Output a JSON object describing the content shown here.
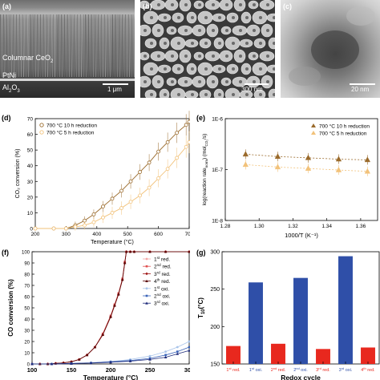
{
  "panels": {
    "a": {
      "label": "(a)",
      "layers": [
        "Columnar CeO",
        "PtNi",
        "Al"
      ],
      "ceo_sub": "2",
      "al_sub1": "2",
      "al_o": "O",
      "al_sub2": "3",
      "scale": "1 μm"
    },
    "b": {
      "label": "(b)",
      "scale": "300 nm"
    },
    "c": {
      "label": "(c)",
      "scale": "20 nm"
    }
  },
  "chart_data": [
    {
      "panel": "(d)",
      "type": "line",
      "xlabel": "Temperature (°C)",
      "ylabel": "CO₂ conversion (%)",
      "xlim": [
        200,
        700
      ],
      "ylim": [
        0,
        70
      ],
      "xticks": [
        200,
        300,
        400,
        500,
        600,
        700
      ],
      "yticks": [
        0,
        10,
        20,
        30,
        40,
        50,
        60,
        70
      ],
      "legend": "top-left",
      "series": [
        {
          "name": "700 °C 10 h reduction",
          "color": "#9a6a2b",
          "x": [
            200,
            260,
            300,
            330,
            360,
            390,
            420,
            450,
            480,
            510,
            540,
            570,
            600,
            630,
            660,
            690,
            700
          ],
          "values": [
            0,
            0,
            0,
            2,
            5,
            9,
            14,
            19,
            24,
            30,
            36,
            42,
            49,
            55,
            61,
            66,
            68
          ]
        },
        {
          "name": "700 °C 5 h reduction",
          "color": "#f2c27a",
          "x": [
            200,
            260,
            300,
            330,
            360,
            390,
            420,
            450,
            480,
            510,
            540,
            570,
            600,
            630,
            660,
            690,
            700
          ],
          "values": [
            0,
            0,
            0,
            1,
            2,
            4,
            7,
            10,
            13,
            17,
            21,
            26,
            32,
            38,
            45,
            52,
            55
          ]
        }
      ]
    },
    {
      "panel": "(e)",
      "type": "scatter",
      "xlabel": "1000/T (K⁻¹)",
      "ylabel": "log(reaction rate",
      "ylabel_sub": "norm",
      "ylabel_mid": ") (mol",
      "ylabel_co2": "CO₂",
      "ylabel_unit": "/s)",
      "xlim": [
        1.28,
        1.37
      ],
      "ylim_log": [
        1e-08,
        1e-06
      ],
      "xticks": [
        1.28,
        1.3,
        1.32,
        1.34,
        1.36
      ],
      "ytick_labels": [
        "1E-6",
        "1E-7",
        "1E-8"
      ],
      "legend": "top-right",
      "series": [
        {
          "name": "700 °C 10 h reduction",
          "color": "#9a6a2b",
          "x": [
            1.292,
            1.311,
            1.329,
            1.347,
            1.364
          ],
          "values": [
            2e-07,
            1.8e-07,
            1.7e-07,
            1.6e-07,
            1.55e-07
          ]
        },
        {
          "name": "700 °C 5 h reduction",
          "color": "#f2c27a",
          "x": [
            1.292,
            1.311,
            1.329,
            1.347,
            1.364
          ],
          "values": [
            1.25e-07,
            1.12e-07,
            1.05e-07,
            9.8e-08,
            9.2e-08
          ]
        }
      ]
    },
    {
      "panel": "(f)",
      "type": "line",
      "xlabel": "Temperature (°C)",
      "ylabel": "CO conversion (%)",
      "xlim": [
        100,
        300
      ],
      "ylim": [
        0,
        100
      ],
      "xticks": [
        100,
        150,
        200,
        250,
        300
      ],
      "yticks": [
        0,
        10,
        20,
        30,
        40,
        50,
        60,
        70,
        80,
        90,
        100
      ],
      "legend": "top-right",
      "series": [
        {
          "name": "1",
          "sup": "st",
          "suffix": " red.",
          "color": "#f4a6a6",
          "x": [
            100,
            110,
            120,
            130,
            140,
            150,
            160,
            170,
            180,
            190,
            200,
            205,
            210,
            215,
            218,
            220,
            225,
            230,
            250,
            270,
            300
          ],
          "values": [
            0,
            0,
            0,
            0.5,
            1,
            2,
            4,
            8,
            15,
            26,
            42,
            52,
            62,
            75,
            90,
            100,
            100,
            100,
            100,
            100,
            100
          ]
        },
        {
          "name": "2",
          "sup": "nd",
          "suffix": " red.",
          "color": "#e05050",
          "x": [
            100,
            110,
            120,
            130,
            140,
            150,
            160,
            170,
            180,
            190,
            200,
            205,
            210,
            215,
            218,
            220,
            225,
            230,
            250,
            270,
            300
          ],
          "values": [
            0,
            0,
            0,
            0.5,
            1,
            2,
            4,
            8,
            15,
            27,
            43,
            53,
            63,
            76,
            91,
            100,
            100,
            100,
            100,
            100,
            100
          ]
        },
        {
          "name": "3",
          "sup": "rd",
          "suffix": " red.",
          "color": "#a01818",
          "x": [
            100,
            110,
            120,
            130,
            140,
            150,
            160,
            170,
            180,
            190,
            200,
            205,
            210,
            215,
            218,
            220,
            225,
            230,
            250,
            270,
            300
          ],
          "values": [
            0,
            0,
            0,
            0.5,
            1,
            2,
            4,
            8,
            15,
            26,
            42,
            52,
            62,
            75,
            90,
            100,
            100,
            100,
            100,
            100,
            100
          ]
        },
        {
          "name": "4",
          "sup": "th",
          "suffix": " red.",
          "color": "#5a0808",
          "x": [
            100,
            110,
            120,
            130,
            140,
            150,
            160,
            170,
            180,
            190,
            200,
            205,
            210,
            215,
            218,
            220,
            225,
            230,
            250,
            270,
            300
          ],
          "values": [
            0,
            0,
            0,
            0.5,
            1,
            2,
            4,
            8,
            15,
            26,
            42,
            52,
            62,
            75,
            90,
            100,
            100,
            100,
            100,
            100,
            100
          ]
        },
        {
          "name": "1",
          "sup": "st",
          "suffix": " oxi.",
          "color": "#a8c4ea",
          "x": [
            100,
            125,
            150,
            175,
            200,
            225,
            250,
            270,
            285,
            300
          ],
          "values": [
            0,
            0,
            0.5,
            1,
            2,
            4,
            7,
            11,
            15,
            20
          ]
        },
        {
          "name": "2",
          "sup": "nd",
          "suffix": " oxi.",
          "color": "#3b64b8",
          "x": [
            100,
            125,
            150,
            175,
            200,
            225,
            250,
            270,
            285,
            300
          ],
          "values": [
            0,
            0,
            0.5,
            1,
            2,
            3,
            5,
            8,
            11,
            15
          ]
        },
        {
          "name": "3",
          "sup": "rd",
          "suffix": " oxi.",
          "color": "#1e2b7a",
          "x": [
            100,
            125,
            150,
            175,
            200,
            225,
            250,
            270,
            285,
            300
          ],
          "values": [
            0,
            0,
            0.3,
            0.8,
            1.5,
            2.5,
            4,
            6,
            9,
            12
          ]
        }
      ]
    },
    {
      "panel": "(g)",
      "type": "bar",
      "xlabel": "Redox cycle",
      "ylabel": "T",
      "ylabel_sub": "10",
      "ylabel_unit": "(°C)",
      "ylim": [
        150,
        300
      ],
      "yticks": [
        150,
        200,
        250,
        300
      ],
      "categories": [
        {
          "n": "1",
          "sup": "st",
          "suffix": " red."
        },
        {
          "n": "1",
          "sup": "st",
          "suffix": " oxi."
        },
        {
          "n": "2",
          "sup": "nd",
          "suffix": " red."
        },
        {
          "n": "2",
          "sup": "nd",
          "suffix": " oxi."
        },
        {
          "n": "3",
          "sup": "rd",
          "suffix": " red."
        },
        {
          "n": "3",
          "sup": "rd",
          "suffix": " oxi."
        },
        {
          "n": "4",
          "sup": "th",
          "suffix": " red."
        }
      ],
      "values": [
        174,
        259,
        177,
        265,
        170,
        294,
        172
      ],
      "colors": [
        "#e8281e",
        "#2f4fa8",
        "#e8281e",
        "#2f4fa8",
        "#e8281e",
        "#2f4fa8",
        "#e8281e"
      ]
    }
  ]
}
